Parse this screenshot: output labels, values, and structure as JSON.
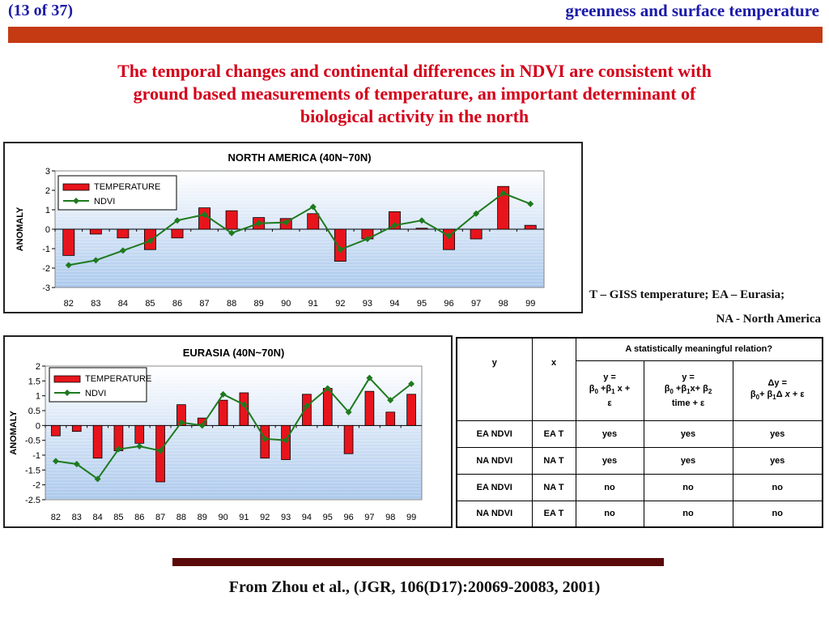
{
  "header": {
    "slide_counter": "(13 of 37)",
    "topic": "greenness and surface temperature"
  },
  "heading": {
    "line1": "The temporal changes and continental differences in NDVI are consistent with",
    "line2": "ground based  measurements of temperature, an important determinant of",
    "line3": "biological activity in the north"
  },
  "notes": {
    "line1": "T – GISS temperature; EA – Eurasia;",
    "line2": "NA - North America"
  },
  "table": {
    "col_y": "y",
    "col_x": "x",
    "group_header": "A statistically meaningful relation?",
    "rows": [
      {
        "y": "EA NDVI",
        "x": "EA T",
        "m1": "yes",
        "m2": "yes",
        "m3": "yes"
      },
      {
        "y": "NA NDVI",
        "x": "NA T",
        "m1": "yes",
        "m2": "yes",
        "m3": "yes"
      },
      {
        "y": "EA NDVI",
        "x": "NA T",
        "m1": "no",
        "m2": "no",
        "m3": "no"
      },
      {
        "y": "NA NDVI",
        "x": "EA T",
        "m1": "no",
        "m2": "no",
        "m3": "no"
      }
    ]
  },
  "footer": {
    "citation": "From Zhou et al., (JGR, 106(D17):20069-20083, 2001)"
  },
  "colors": {
    "header_text": "#1a1aa8",
    "header_bar": "#c53a12",
    "heading_text": "#d4001a",
    "bar_fill": "#e8141c",
    "line_color": "#1e7a1e",
    "footer_bar": "#5a0a0a"
  },
  "chart_data": [
    {
      "type": "bar",
      "title": "NORTH AMERICA (40N~70N)",
      "ylabel": "ANOMALY",
      "xlabel": "",
      "categories": [
        "82",
        "83",
        "84",
        "85",
        "86",
        "87",
        "88",
        "89",
        "90",
        "91",
        "92",
        "93",
        "94",
        "95",
        "96",
        "97",
        "98",
        "99"
      ],
      "ylim": [
        -3,
        3
      ],
      "yticks": [
        "3",
        "2",
        "1",
        "0",
        "-1",
        "-2",
        "-3"
      ],
      "legend_position": "top-left",
      "grid": false,
      "series": [
        {
          "name": "TEMPERATURE",
          "kind": "bar",
          "values": [
            -1.35,
            -0.25,
            -0.45,
            -1.05,
            -0.45,
            1.1,
            0.95,
            0.6,
            0.55,
            0.8,
            -1.65,
            -0.5,
            0.9,
            0.05,
            -1.05,
            -0.5,
            2.2,
            0.2
          ]
        },
        {
          "name": "NDVI",
          "kind": "line",
          "values": [
            -1.85,
            -1.6,
            -1.1,
            -0.6,
            0.45,
            0.75,
            -0.2,
            0.3,
            0.35,
            1.15,
            -1.05,
            -0.5,
            0.2,
            0.45,
            -0.35,
            0.8,
            1.85,
            1.3
          ]
        }
      ]
    },
    {
      "type": "bar",
      "title": "EURASIA (40N~70N)",
      "ylabel": "ANOMALY",
      "xlabel": "",
      "categories": [
        "82",
        "83",
        "84",
        "85",
        "86",
        "87",
        "88",
        "89",
        "90",
        "91",
        "92",
        "93",
        "94",
        "95",
        "96",
        "97",
        "98",
        "99"
      ],
      "ylim": [
        -2.5,
        2
      ],
      "yticks": [
        "2",
        "1.5",
        "1",
        "0.5",
        "0",
        "-0.5",
        "-1",
        "-1.5",
        "-2",
        "-2.5"
      ],
      "legend_position": "top-left",
      "grid": false,
      "series": [
        {
          "name": "TEMPERATURE",
          "kind": "bar",
          "values": [
            -0.35,
            -0.2,
            -1.1,
            -0.85,
            -0.6,
            -1.9,
            0.7,
            0.25,
            0.85,
            1.1,
            -1.1,
            -1.15,
            1.05,
            1.25,
            -0.95,
            1.15,
            0.45,
            1.05
          ]
        },
        {
          "name": "NDVI",
          "kind": "line",
          "values": [
            -1.2,
            -1.3,
            -1.8,
            -0.8,
            -0.7,
            -0.85,
            0.1,
            0.0,
            1.05,
            0.7,
            -0.45,
            -0.5,
            0.65,
            1.25,
            0.45,
            1.6,
            0.85,
            1.4
          ]
        }
      ]
    }
  ]
}
